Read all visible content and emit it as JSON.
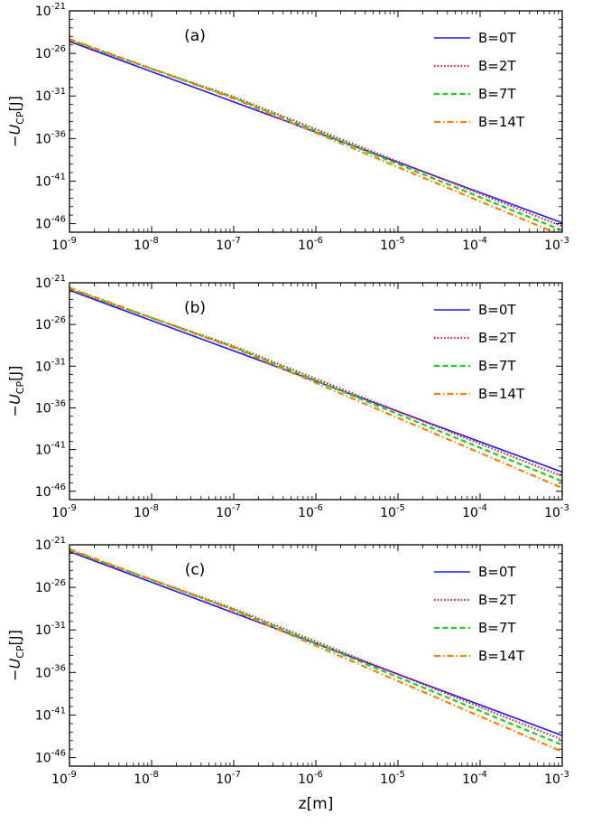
{
  "chart_data": [
    {
      "type": "line",
      "panel_label": "(a)",
      "xlabel": "",
      "ylabel": "-U_CP[J]",
      "xscale": "log",
      "yscale": "log",
      "xlim_exp": [
        -9,
        -3
      ],
      "ylim_exp": [
        -47,
        -21
      ],
      "x_ticks": [
        {
          "base": "10",
          "exp": "-9"
        },
        {
          "base": "10",
          "exp": "-8"
        },
        {
          "base": "10",
          "exp": "-7"
        },
        {
          "base": "10",
          "exp": "-6"
        },
        {
          "base": "10",
          "exp": "-5"
        },
        {
          "base": "10",
          "exp": "-4"
        },
        {
          "base": "10",
          "exp": "-3"
        }
      ],
      "y_ticks": [
        {
          "base": "10",
          "exp": "-21"
        },
        {
          "base": "10",
          "exp": "-26"
        },
        {
          "base": "10",
          "exp": "-31"
        },
        {
          "base": "10",
          "exp": "-36"
        },
        {
          "base": "10",
          "exp": "-41"
        },
        {
          "base": "10",
          "exp": "-46"
        }
      ],
      "legend_position": "top-right",
      "series": [
        {
          "name": "B=0T",
          "color": "#1a1aff",
          "dash": "solid",
          "log_x": [
            -9,
            -3
          ],
          "log_y": [
            -24.6,
            -45.9
          ]
        },
        {
          "name": "B=2T",
          "color": "#e8192c",
          "dash": "dotted",
          "log_x": [
            -9,
            -7,
            -3
          ],
          "log_y": [
            -24.5,
            -31.1,
            -46.3
          ]
        },
        {
          "name": "B=7T",
          "color": "#22cc22",
          "dash": "dashed",
          "log_x": [
            -9,
            -7,
            -3
          ],
          "log_y": [
            -24.4,
            -31.2,
            -46.8
          ]
        },
        {
          "name": "B=14T",
          "color": "#ff8000",
          "dash": "dashdot",
          "log_x": [
            -9,
            -7,
            -3
          ],
          "log_y": [
            -24.3,
            -31.3,
            -47.4
          ]
        }
      ]
    },
    {
      "type": "line",
      "panel_label": "(b)",
      "xlabel": "",
      "ylabel": "-U_CP[J]",
      "xscale": "log",
      "yscale": "log",
      "xlim_exp": [
        -9,
        -3
      ],
      "ylim_exp": [
        -47,
        -21
      ],
      "x_ticks": [
        {
          "base": "10",
          "exp": "-9"
        },
        {
          "base": "10",
          "exp": "-8"
        },
        {
          "base": "10",
          "exp": "-7"
        },
        {
          "base": "10",
          "exp": "-6"
        },
        {
          "base": "10",
          "exp": "-5"
        },
        {
          "base": "10",
          "exp": "-4"
        },
        {
          "base": "10",
          "exp": "-3"
        }
      ],
      "y_ticks": [
        {
          "base": "10",
          "exp": "-21"
        },
        {
          "base": "10",
          "exp": "-26"
        },
        {
          "base": "10",
          "exp": "-31"
        },
        {
          "base": "10",
          "exp": "-36"
        },
        {
          "base": "10",
          "exp": "-41"
        },
        {
          "base": "10",
          "exp": "-46"
        }
      ],
      "legend_position": "top-right",
      "series": [
        {
          "name": "B=0T",
          "color": "#1a1aff",
          "dash": "solid",
          "log_x": [
            -9,
            -3
          ],
          "log_y": [
            -21.9,
            -43.7
          ]
        },
        {
          "name": "B=2T",
          "color": "#e8192c",
          "dash": "dotted",
          "log_x": [
            -9,
            -7,
            -3
          ],
          "log_y": [
            -21.8,
            -28.6,
            -44.2
          ]
        },
        {
          "name": "B=7T",
          "color": "#22cc22",
          "dash": "dashed",
          "log_x": [
            -9,
            -7,
            -3
          ],
          "log_y": [
            -21.7,
            -28.7,
            -44.8
          ]
        },
        {
          "name": "B=14T",
          "color": "#ff8000",
          "dash": "dashdot",
          "log_x": [
            -9,
            -7,
            -3
          ],
          "log_y": [
            -21.6,
            -28.8,
            -45.6
          ]
        }
      ]
    },
    {
      "type": "line",
      "panel_label": "(c)",
      "xlabel": "z[m]",
      "ylabel": "-U_CP[J]",
      "xscale": "log",
      "yscale": "log",
      "xlim_exp": [
        -9,
        -3
      ],
      "ylim_exp": [
        -47,
        -21
      ],
      "x_ticks": [
        {
          "base": "10",
          "exp": "-9"
        },
        {
          "base": "10",
          "exp": "-8"
        },
        {
          "base": "10",
          "exp": "-7"
        },
        {
          "base": "10",
          "exp": "-6"
        },
        {
          "base": "10",
          "exp": "-5"
        },
        {
          "base": "10",
          "exp": "-4"
        },
        {
          "base": "10",
          "exp": "-3"
        }
      ],
      "y_ticks": [
        {
          "base": "10",
          "exp": "-21"
        },
        {
          "base": "10",
          "exp": "-26"
        },
        {
          "base": "10",
          "exp": "-31"
        },
        {
          "base": "10",
          "exp": "-36"
        },
        {
          "base": "10",
          "exp": "-41"
        },
        {
          "base": "10",
          "exp": "-46"
        }
      ],
      "legend_position": "top-right",
      "series": [
        {
          "name": "B=0T",
          "color": "#1a1aff",
          "dash": "solid",
          "log_x": [
            -9,
            -3
          ],
          "log_y": [
            -21.8,
            -43.4
          ]
        },
        {
          "name": "B=2T",
          "color": "#e8192c",
          "dash": "dotted",
          "log_x": [
            -9,
            -7,
            -3
          ],
          "log_y": [
            -21.7,
            -28.5,
            -43.9
          ]
        },
        {
          "name": "B=7T",
          "color": "#22cc22",
          "dash": "dashed",
          "log_x": [
            -9,
            -7,
            -3
          ],
          "log_y": [
            -21.6,
            -28.6,
            -44.5
          ]
        },
        {
          "name": "B=14T",
          "color": "#ff8000",
          "dash": "dashdot",
          "log_x": [
            -9,
            -7,
            -3
          ],
          "log_y": [
            -21.5,
            -28.7,
            -45.3
          ]
        }
      ]
    }
  ]
}
